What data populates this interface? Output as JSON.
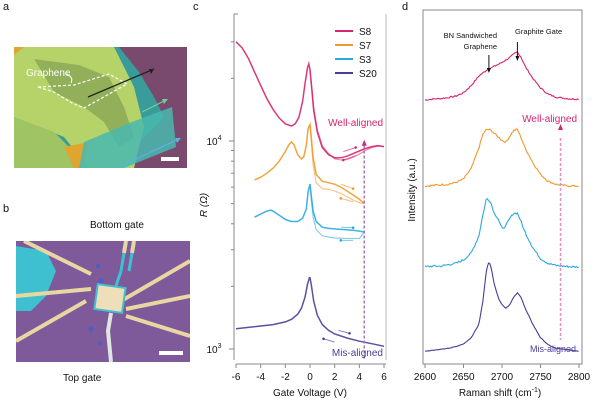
{
  "panels": {
    "a": {
      "label": "a",
      "annotation": "Graphene",
      "colors": {
        "background": "#7a4a6e",
        "hbn_light": "#b6d36a",
        "hbn_mid": "#9fc463",
        "hbn_dark": "#8aa855",
        "teal": "#3a9c9a",
        "cyan": "#48b8ae",
        "gold": "#e0a531"
      }
    },
    "b": {
      "label": "b",
      "annotation_top": "Bottom gate",
      "annotation_bottom": "Top gate",
      "colors": {
        "background": "#7e5a9a",
        "lead": "#e9d7a3",
        "cyan": "#3fc0d0",
        "dot": "#4b5fc6"
      }
    },
    "c": {
      "label": "c"
    },
    "d": {
      "label": "d"
    }
  },
  "chart_data": [
    {
      "id": "c",
      "type": "line",
      "xlabel": "Gate Voltage (V)",
      "ylabel": "R (Ω)",
      "xlim": [
        -6,
        6
      ],
      "yscale": "log",
      "ylim": [
        900,
        45000
      ],
      "xticks": [
        -6,
        -4,
        -2,
        0,
        2,
        4,
        6
      ],
      "xtick_labels": [
        "-6",
        "-4",
        "-2",
        "0",
        "2",
        "4",
        "6"
      ],
      "ytick_labels": [
        {
          "value": 1000,
          "base": "10",
          "exp": "3"
        },
        {
          "value": 10000,
          "base": "10",
          "exp": "4"
        }
      ],
      "yminor": [
        2000,
        3000,
        4000,
        5000,
        6000,
        7000,
        8000,
        9000,
        20000,
        30000
      ],
      "legend": {
        "position": "top-right",
        "entries": [
          {
            "name": "S8",
            "color": "#d6246e"
          },
          {
            "name": "S7",
            "color": "#ef9a2a"
          },
          {
            "name": "S3",
            "color": "#2aa9e0"
          },
          {
            "name": "S20",
            "color": "#4b3c9a"
          }
        ]
      },
      "annotations": [
        {
          "text": "Well-aligned",
          "color": "#d6246e",
          "position": "upper-right"
        },
        {
          "text": "Mis-aligned",
          "color": "#4b3c9a",
          "position": "lower-right"
        }
      ],
      "marker_line": {
        "x": 4.4,
        "color": "#a674b8",
        "style": "dashed-arrow-up"
      },
      "series": [
        {
          "name": "S8",
          "color": "#d6246e",
          "x": [
            -6,
            -5.5,
            -5,
            -4.5,
            -4,
            -3.5,
            -3,
            -2.5,
            -2,
            -1.5,
            -1.2,
            -0.9,
            -0.6,
            -0.4,
            -0.2,
            -0.1,
            0,
            0.15,
            0.3,
            0.6,
            1,
            1.5,
            2,
            2.5,
            3,
            3.5,
            4,
            4.5,
            5,
            5.5,
            6
          ],
          "y": [
            30000,
            28000,
            25000,
            21500,
            18500,
            16000,
            14200,
            12900,
            12100,
            11800,
            12100,
            13000,
            15500,
            19000,
            22500,
            23500,
            22000,
            17500,
            14000,
            11000,
            9300,
            8600,
            8300,
            8300,
            8450,
            8700,
            8950,
            9200,
            9400,
            9500,
            9400
          ],
          "y_back": [
            null,
            null,
            null,
            null,
            null,
            null,
            null,
            null,
            null,
            null,
            null,
            null,
            null,
            null,
            null,
            null,
            22000,
            18000,
            14500,
            11300,
            9500,
            8700,
            8200,
            8100,
            8150,
            8350,
            8650,
            9000,
            9300,
            9450,
            9400
          ]
        },
        {
          "name": "S7",
          "color": "#ef9a2a",
          "x": [
            -4.5,
            -4,
            -3.5,
            -3,
            -2.5,
            -2,
            -1.7,
            -1.5,
            -1.3,
            -1,
            -0.7,
            -0.5,
            -0.3,
            -0.15,
            0,
            0.1,
            0.25,
            0.5,
            1,
            1.5,
            2,
            2.5,
            3,
            3.5,
            4,
            4.4
          ],
          "y": [
            6500,
            6700,
            7000,
            7400,
            8000,
            8900,
            9600,
            9900,
            9600,
            8600,
            8200,
            8400,
            9500,
            11500,
            12000,
            10500,
            8300,
            6900,
            6400,
            6300,
            6200,
            6000,
            5750,
            5500,
            5250,
            5000
          ],
          "y_back": [
            null,
            null,
            null,
            null,
            null,
            null,
            null,
            null,
            null,
            null,
            null,
            null,
            null,
            null,
            12000,
            10000,
            7700,
            6300,
            5900,
            5850,
            5750,
            5600,
            5400,
            5200,
            5050,
            5000
          ]
        },
        {
          "name": "S3",
          "color": "#2aa9e0",
          "x": [
            -4.5,
            -4,
            -3.5,
            -3.2,
            -3,
            -2.5,
            -2,
            -1.5,
            -1,
            -0.6,
            -0.3,
            -0.15,
            0,
            0.1,
            0.25,
            0.5,
            1,
            1.5,
            2,
            2.5,
            3,
            3.5,
            4,
            4.4
          ],
          "y": [
            4300,
            4450,
            4600,
            4650,
            4600,
            4400,
            4200,
            4100,
            4100,
            4250,
            4700,
            5700,
            6200,
            5500,
            4600,
            4100,
            3850,
            3800,
            3780,
            3760,
            3740,
            3720,
            3690,
            3650
          ],
          "y_back": [
            null,
            null,
            null,
            null,
            null,
            null,
            null,
            null,
            null,
            null,
            null,
            null,
            6200,
            5300,
            4300,
            3750,
            3500,
            3450,
            3420,
            3410,
            3400,
            3400,
            3400,
            3650
          ]
        },
        {
          "name": "S20",
          "color": "#4b3c9a",
          "x": [
            -6,
            -5,
            -4,
            -3,
            -2,
            -1.5,
            -1,
            -0.7,
            -0.4,
            -0.2,
            -0.05,
            0,
            0.1,
            0.3,
            0.6,
            1,
            1.5,
            2,
            3,
            4,
            5,
            6
          ],
          "y": [
            1250,
            1270,
            1290,
            1310,
            1350,
            1390,
            1470,
            1570,
            1780,
            2050,
            2200,
            2200,
            2050,
            1700,
            1450,
            1310,
            1230,
            1180,
            1130,
            1090,
            1060,
            1030
          ]
        }
      ]
    },
    {
      "id": "d",
      "type": "line",
      "xlabel": "Raman shift (cm⁻¹)",
      "xlabel_base": "Raman shift (cm",
      "xlabel_exp": "-1",
      "xlabel_end": ")",
      "ylabel": "Intensity (a.u.)",
      "xlim": [
        2600,
        2800
      ],
      "xticks": [
        2600,
        2650,
        2700,
        2750,
        2800
      ],
      "xtick_labels": [
        "2600",
        "2650",
        "2700",
        "2750",
        "2800"
      ],
      "ylim": [
        0,
        1
      ],
      "annotations": [
        {
          "text": "BN Sandwiched",
          "text2": "Graphene",
          "arrow_x": 2683,
          "position": "top"
        },
        {
          "text": "Graphite Gate",
          "arrow_x": 2720,
          "position": "top"
        },
        {
          "text": "Well-aligned",
          "color": "#d6246e",
          "position": "right"
        },
        {
          "text": "Mis-aligned",
          "color": "#4b3c9a",
          "position": "bottom-right"
        }
      ],
      "marker_line": {
        "x": 2776,
        "color": "#e88fc0",
        "style": "dashed-arrow-up"
      },
      "series": [
        {
          "name": "S8",
          "color": "#d6246e",
          "offset": 0.75,
          "scale": 0.14,
          "x": [
            2600,
            2610,
            2620,
            2630,
            2640,
            2650,
            2660,
            2670,
            2680,
            2690,
            2700,
            2710,
            2715,
            2720,
            2725,
            2730,
            2740,
            2750,
            2760,
            2770,
            2780,
            2790,
            2800
          ],
          "y": [
            0.0,
            0.02,
            0.03,
            0.05,
            0.08,
            0.15,
            0.3,
            0.5,
            0.62,
            0.7,
            0.78,
            0.88,
            0.95,
            1.0,
            0.88,
            0.7,
            0.45,
            0.25,
            0.12,
            0.06,
            0.04,
            0.02,
            0.02
          ]
        },
        {
          "name": "S7",
          "color": "#ef9a2a",
          "offset": 0.5,
          "scale": 0.17,
          "x": [
            2600,
            2610,
            2620,
            2630,
            2640,
            2650,
            2660,
            2670,
            2675,
            2680,
            2685,
            2690,
            2700,
            2705,
            2710,
            2715,
            2720,
            2725,
            2730,
            2740,
            2750,
            2760,
            2770,
            2780,
            2790,
            2800
          ],
          "y": [
            0.0,
            0.01,
            0.02,
            0.03,
            0.06,
            0.12,
            0.3,
            0.65,
            0.88,
            0.97,
            0.96,
            0.9,
            0.78,
            0.75,
            0.85,
            0.95,
            0.97,
            0.82,
            0.65,
            0.4,
            0.2,
            0.08,
            0.03,
            0.01,
            0.0,
            0.0
          ]
        },
        {
          "name": "S3",
          "color": "#2aa9e0",
          "offset": 0.265,
          "scale": 0.2,
          "x": [
            2600,
            2610,
            2620,
            2630,
            2640,
            2650,
            2660,
            2670,
            2675,
            2680,
            2685,
            2690,
            2695,
            2700,
            2705,
            2710,
            2715,
            2720,
            2725,
            2730,
            2740,
            2750,
            2760,
            2770,
            2780,
            2790,
            2800
          ],
          "y": [
            0.0,
            0.01,
            0.01,
            0.03,
            0.05,
            0.1,
            0.2,
            0.45,
            0.75,
            1.0,
            0.95,
            0.78,
            0.7,
            0.55,
            0.6,
            0.7,
            0.78,
            0.78,
            0.65,
            0.5,
            0.28,
            0.12,
            0.05,
            0.02,
            0.01,
            0.0,
            0.0
          ]
        },
        {
          "name": "S20",
          "color": "#4b3c9a",
          "offset": 0.02,
          "scale": 0.26,
          "x": [
            2600,
            2610,
            2620,
            2630,
            2640,
            2650,
            2660,
            2670,
            2675,
            2680,
            2683,
            2686,
            2690,
            2695,
            2700,
            2705,
            2710,
            2715,
            2720,
            2725,
            2730,
            2740,
            2750,
            2760,
            2770,
            2780,
            2790,
            2800
          ],
          "y": [
            0.0,
            0.01,
            0.02,
            0.03,
            0.05,
            0.08,
            0.15,
            0.3,
            0.55,
            0.92,
            1.0,
            0.93,
            0.75,
            0.6,
            0.52,
            0.48,
            0.52,
            0.6,
            0.65,
            0.6,
            0.48,
            0.3,
            0.15,
            0.07,
            0.03,
            0.02,
            0.01,
            0.0
          ]
        }
      ]
    }
  ]
}
